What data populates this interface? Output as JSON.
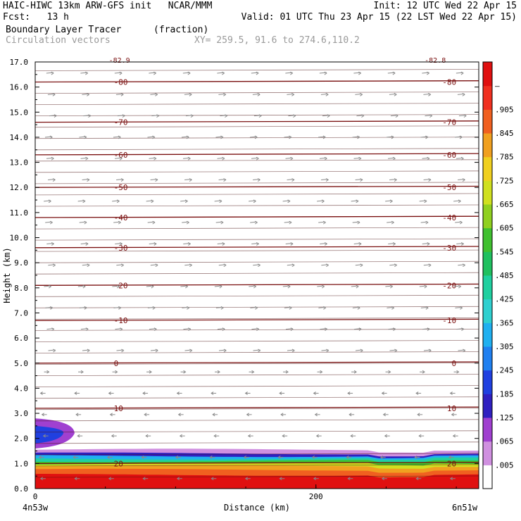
{
  "header": {
    "line1_left": "HAIC-HIWC 13km ARW-GFS init   NCAR/MMM",
    "line1_right": "Init: 12 UTC Wed 22 Apr 15",
    "line2_left": "Fcst:   13 h",
    "line2_right": "Valid: 01 UTC Thu 23 Apr 15 (22 LST Wed 22 Apr 15)",
    "field_name": "Boundary Layer Tracer",
    "field_units": "(fraction)",
    "vector_label": "Circulation vectors",
    "xy_label": "XY= 259.5, 91.6 to 274.6,110.2"
  },
  "chart_data": {
    "type": "heatmap",
    "ylabel": "Height (km)",
    "xlabel": "Distance (km)",
    "ylim": [
      0.0,
      17.0
    ],
    "y_ticks": [
      "0.0",
      "1.0",
      "2.0",
      "3.0",
      "4.0",
      "5.0",
      "6.0",
      "7.0",
      "8.0",
      "9.0",
      "10.0",
      "11.0",
      "12.0",
      "13.0",
      "14.0",
      "15.0",
      "16.0",
      "17.0"
    ],
    "xlim": [
      0,
      316
    ],
    "x_ticks": [
      "0",
      "200"
    ],
    "x_tick_values": [
      0,
      200
    ],
    "x_left_label": "4n53w",
    "x_right_label": "6n51w",
    "colorbar": {
      "labels": [
        ".005",
        ".065",
        ".125",
        ".185",
        ".245",
        ".305",
        ".365",
        ".425",
        ".485",
        ".545",
        ".605",
        ".665",
        ".725",
        ".785",
        ".845",
        ".905",
        "–"
      ],
      "colors": [
        "#ffffff",
        "#d090e0",
        "#a040d0",
        "#3020c0",
        "#2040e0",
        "#2080f0",
        "#20b0f0",
        "#30d0d0",
        "#20d0a0",
        "#20c060",
        "#40c030",
        "#90d020",
        "#d0e020",
        "#f0d020",
        "#f0a020",
        "#f06020",
        "#f03020",
        "#e01010"
      ]
    },
    "temperature_contours": [
      {
        "label": "-80",
        "height_km": 16.2
      },
      {
        "label": "-70",
        "height_km": 14.6
      },
      {
        "label": "-60",
        "height_km": 13.3
      },
      {
        "label": "-50",
        "height_km": 12.0
      },
      {
        "label": "-40",
        "height_km": 10.8
      },
      {
        "label": "-30",
        "height_km": 9.6
      },
      {
        "label": "-20",
        "height_km": 8.1
      },
      {
        "label": "-10",
        "height_km": 6.7
      },
      {
        "label": "0",
        "height_km": 5.0
      },
      {
        "label": "10",
        "height_km": 3.2
      },
      {
        "label": "20",
        "height_km": 1.0
      }
    ],
    "top_partial_labels": [
      "-82.9",
      "-82.8"
    ],
    "tracer_layers": [
      {
        "value": 0.99,
        "top_km": 0.55
      },
      {
        "value": 0.88,
        "top_km": 0.75
      },
      {
        "value": 0.8,
        "top_km": 0.9
      },
      {
        "value": 0.7,
        "top_km": 1.0
      },
      {
        "value": 0.6,
        "top_km": 1.1
      },
      {
        "value": 0.48,
        "top_km": 1.2
      },
      {
        "value": 0.36,
        "top_km": 1.3
      },
      {
        "value": 0.22,
        "top_km": 1.4
      },
      {
        "value": 0.1,
        "top_km": 1.55
      }
    ],
    "tracer_blob": {
      "x_km": [
        0,
        28
      ],
      "y_km": [
        1.6,
        2.8
      ],
      "value": 0.12
    }
  }
}
